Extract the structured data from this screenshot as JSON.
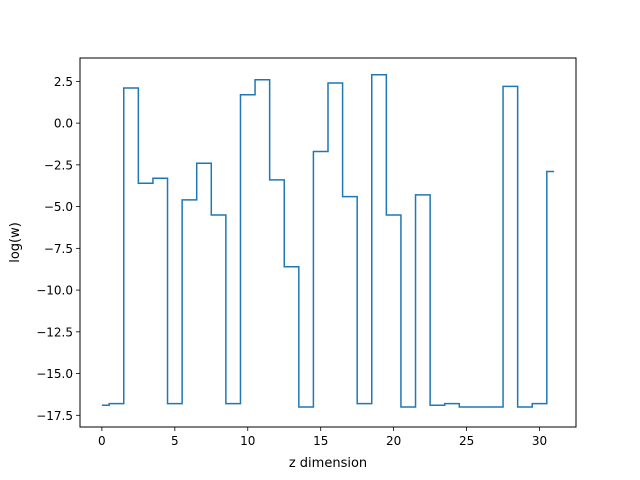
{
  "chart_data": {
    "type": "line",
    "drawstyle": "steps-mid",
    "title": "",
    "xlabel": "z dimension",
    "ylabel": "log(w)",
    "xlim": [
      -1.5,
      32.5
    ],
    "ylim": [
      -18.2,
      3.9
    ],
    "grid": false,
    "series": [
      {
        "color": "#1f77b4",
        "x": [
          0,
          1,
          2,
          3,
          4,
          5,
          6,
          7,
          8,
          9,
          10,
          11,
          12,
          13,
          14,
          15,
          16,
          17,
          18,
          19,
          20,
          21,
          22,
          23,
          24,
          25,
          26,
          27,
          28,
          29,
          30,
          31
        ],
        "y": [
          -16.9,
          -16.8,
          2.1,
          -3.6,
          -3.3,
          -16.8,
          -4.6,
          -2.4,
          -5.5,
          -16.8,
          1.7,
          2.6,
          -3.4,
          -8.6,
          -17.0,
          -1.7,
          2.4,
          -4.4,
          -16.8,
          2.9,
          -5.5,
          -17.0,
          -4.3,
          -16.9,
          -16.8,
          -17.0,
          -17.0,
          -17.0,
          2.2,
          -17.0,
          -16.8,
          -2.9
        ]
      }
    ],
    "xticks": [
      0,
      5,
      10,
      15,
      20,
      25,
      30
    ],
    "xtick_labels": [
      "0",
      "5",
      "10",
      "15",
      "20",
      "25",
      "30"
    ],
    "yticks": [
      2.5,
      0.0,
      -2.5,
      -5.0,
      -7.5,
      -10.0,
      -12.5,
      -15.0,
      -17.5
    ],
    "ytick_labels": [
      "2.5",
      "0.0",
      "−2.5",
      "−5.0",
      "−7.5",
      "−10.0",
      "−12.5",
      "−15.0",
      "−17.5"
    ]
  }
}
